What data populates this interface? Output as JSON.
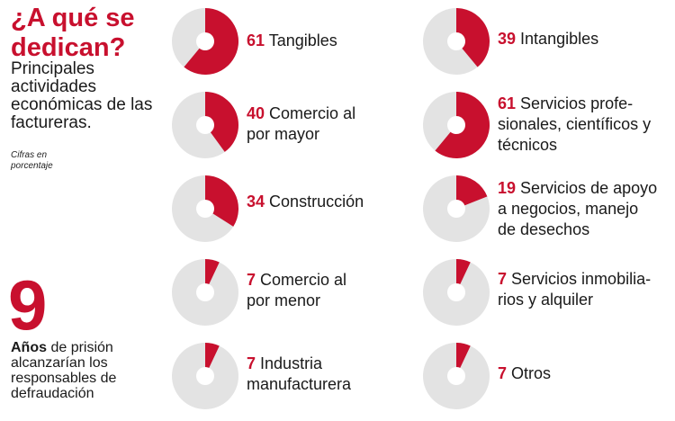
{
  "header": {
    "title": "¿A qué se dedican?",
    "subtitle": "Principales actividades económicas de las factureras.",
    "note": "Cifras en porcentaje"
  },
  "fact": {
    "number": "9",
    "strong": "Años",
    "text": " de prisión alcanzarían los responsables de defraudación"
  },
  "colors": {
    "accent": "#c8102e",
    "track": "#e3e3e3",
    "hole": "#ffffff"
  },
  "chart_data": {
    "type": "pie",
    "unit": "%",
    "title": "¿A qué se dedican?",
    "charts": [
      {
        "pct": "61",
        "label": "Tangibles",
        "value": 61
      },
      {
        "pct": "39",
        "label": "Intangibles",
        "value": 39
      },
      {
        "pct": "40",
        "label": "Comercio al por mayor",
        "value": 40
      },
      {
        "pct": "61",
        "label": "Servicios profe-sionales, científicos y técnicos",
        "value": 61
      },
      {
        "pct": "34",
        "label": "Construcción",
        "value": 34
      },
      {
        "pct": "19",
        "label": "Servicios de apoyo a negocios, manejo de desechos",
        "value": 19
      },
      {
        "pct": "7",
        "label": "Comercio al por menor",
        "value": 7
      },
      {
        "pct": "7",
        "label": "Servicios inmobilia-rios y alquiler",
        "value": 7
      },
      {
        "pct": "7",
        "label": "Industria manufacturera",
        "value": 7
      },
      {
        "pct": "7",
        "label": "Otros",
        "value": 7
      }
    ]
  }
}
